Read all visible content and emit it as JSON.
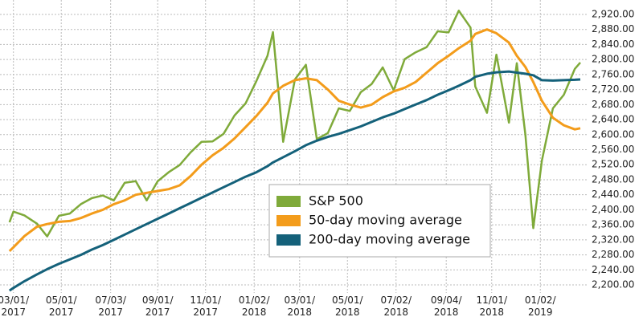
{
  "chart_data": {
    "type": "line",
    "x": [
      "2017-02-24",
      "2017-03-01",
      "2017-03-15",
      "2017-03-31",
      "2017-04-13",
      "2017-04-28",
      "2017-05-12",
      "2017-05-26",
      "2017-06-09",
      "2017-06-23",
      "2017-07-07",
      "2017-07-21",
      "2017-08-04",
      "2017-08-18",
      "2017-09-01",
      "2017-09-15",
      "2017-09-29",
      "2017-10-13",
      "2017-10-27",
      "2017-11-10",
      "2017-11-24",
      "2017-12-08",
      "2017-12-22",
      "2018-01-05",
      "2018-01-19",
      "2018-01-26",
      "2018-02-08",
      "2018-02-23",
      "2018-03-09",
      "2018-03-23",
      "2018-04-06",
      "2018-04-20",
      "2018-05-04",
      "2018-05-18",
      "2018-06-01",
      "2018-06-15",
      "2018-06-29",
      "2018-07-13",
      "2018-07-27",
      "2018-08-10",
      "2018-08-24",
      "2018-09-07",
      "2018-09-20",
      "2018-10-05",
      "2018-10-11",
      "2018-10-26",
      "2018-11-07",
      "2018-11-23",
      "2018-12-03",
      "2018-12-14",
      "2018-12-24",
      "2019-01-04",
      "2019-01-18",
      "2019-02-01",
      "2019-02-15",
      "2019-02-22"
    ],
    "series": [
      {
        "name": "S&P 500",
        "color": "#7faa3a",
        "values": [
          2367,
          2395,
          2385,
          2363,
          2329,
          2384,
          2390,
          2415,
          2431,
          2438,
          2425,
          2472,
          2476,
          2425,
          2476,
          2500,
          2519,
          2553,
          2581,
          2582,
          2602,
          2651,
          2683,
          2743,
          2810,
          2873,
          2581,
          2747,
          2786,
          2588,
          2604,
          2670,
          2663,
          2713,
          2735,
          2779,
          2718,
          2801,
          2819,
          2833,
          2875,
          2872,
          2930,
          2885,
          2728,
          2658,
          2813,
          2632,
          2790,
          2599,
          2351,
          2531,
          2670,
          2706,
          2775,
          2792
        ]
      },
      {
        "name": "50-day moving average",
        "color": "#f39c1b",
        "values": [
          2290,
          2300,
          2330,
          2355,
          2362,
          2368,
          2370,
          2378,
          2390,
          2400,
          2415,
          2425,
          2440,
          2445,
          2450,
          2455,
          2465,
          2490,
          2520,
          2545,
          2565,
          2590,
          2620,
          2650,
          2685,
          2710,
          2730,
          2745,
          2750,
          2745,
          2720,
          2690,
          2680,
          2672,
          2680,
          2700,
          2715,
          2725,
          2740,
          2765,
          2790,
          2810,
          2830,
          2850,
          2868,
          2880,
          2870,
          2845,
          2810,
          2780,
          2740,
          2690,
          2645,
          2625,
          2614,
          2617
        ]
      },
      {
        "name": "200-day moving average",
        "color": "#14617a",
        "values": [
          2185,
          2192,
          2210,
          2228,
          2242,
          2256,
          2268,
          2280,
          2294,
          2306,
          2320,
          2334,
          2348,
          2362,
          2376,
          2390,
          2404,
          2418,
          2432,
          2446,
          2460,
          2474,
          2488,
          2500,
          2516,
          2526,
          2540,
          2556,
          2572,
          2584,
          2594,
          2602,
          2612,
          2622,
          2634,
          2646,
          2656,
          2668,
          2680,
          2692,
          2706,
          2718,
          2730,
          2745,
          2754,
          2762,
          2766,
          2768,
          2765,
          2762,
          2758,
          2745,
          2744,
          2745,
          2746,
          2747
        ]
      }
    ],
    "xlim": [
      "2017-02-17",
      "2019-02-22"
    ],
    "xticks": [
      {
        "value": "2017-03-01",
        "label": "03/01/ 2017"
      },
      {
        "value": "2017-05-01",
        "label": "05/01/ 2017"
      },
      {
        "value": "2017-07-03",
        "label": "07/03/ 2017"
      },
      {
        "value": "2017-09-01",
        "label": "09/01/ 2017"
      },
      {
        "value": "2017-11-01",
        "label": "11/01/ 2017"
      },
      {
        "value": "2018-01-02",
        "label": "01/02/ 2018"
      },
      {
        "value": "2018-03-01",
        "label": "03/01/ 2018"
      },
      {
        "value": "2018-05-01",
        "label": "05/01/ 2018"
      },
      {
        "value": "2018-07-02",
        "label": "07/02/ 2018"
      },
      {
        "value": "2018-09-04",
        "label": "09/04/ 2018"
      },
      {
        "value": "2018-11-01",
        "label": "11/01/ 2018"
      },
      {
        "value": "2019-01-02",
        "label": "01/02/ 2019"
      }
    ],
    "ylim": [
      2180,
      2940
    ],
    "yticks": [
      {
        "value": 2200,
        "label": "2,200.00"
      },
      {
        "value": 2240,
        "label": "2,240.00"
      },
      {
        "value": 2280,
        "label": "2,280.00"
      },
      {
        "value": 2320,
        "label": "2,320.00"
      },
      {
        "value": 2360,
        "label": "2,360.00"
      },
      {
        "value": 2400,
        "label": "2,400.00"
      },
      {
        "value": 2440,
        "label": "2,440.00"
      },
      {
        "value": 2480,
        "label": "2,480.00"
      },
      {
        "value": 2520,
        "label": "2,520.00"
      },
      {
        "value": 2560,
        "label": "2,560.00"
      },
      {
        "value": 2600,
        "label": "2,600.00"
      },
      {
        "value": 2640,
        "label": "2,640.00"
      },
      {
        "value": 2680,
        "label": "2,680.00"
      },
      {
        "value": 2720,
        "label": "2,720.00"
      },
      {
        "value": 2760,
        "label": "2,760.00"
      },
      {
        "value": 2800,
        "label": "2,800.00"
      },
      {
        "value": 2840,
        "label": "2,840.00"
      },
      {
        "value": 2880,
        "label": "2,880.00"
      },
      {
        "value": 2920,
        "label": "2,920.00"
      }
    ],
    "grid": true,
    "legend": "center"
  }
}
